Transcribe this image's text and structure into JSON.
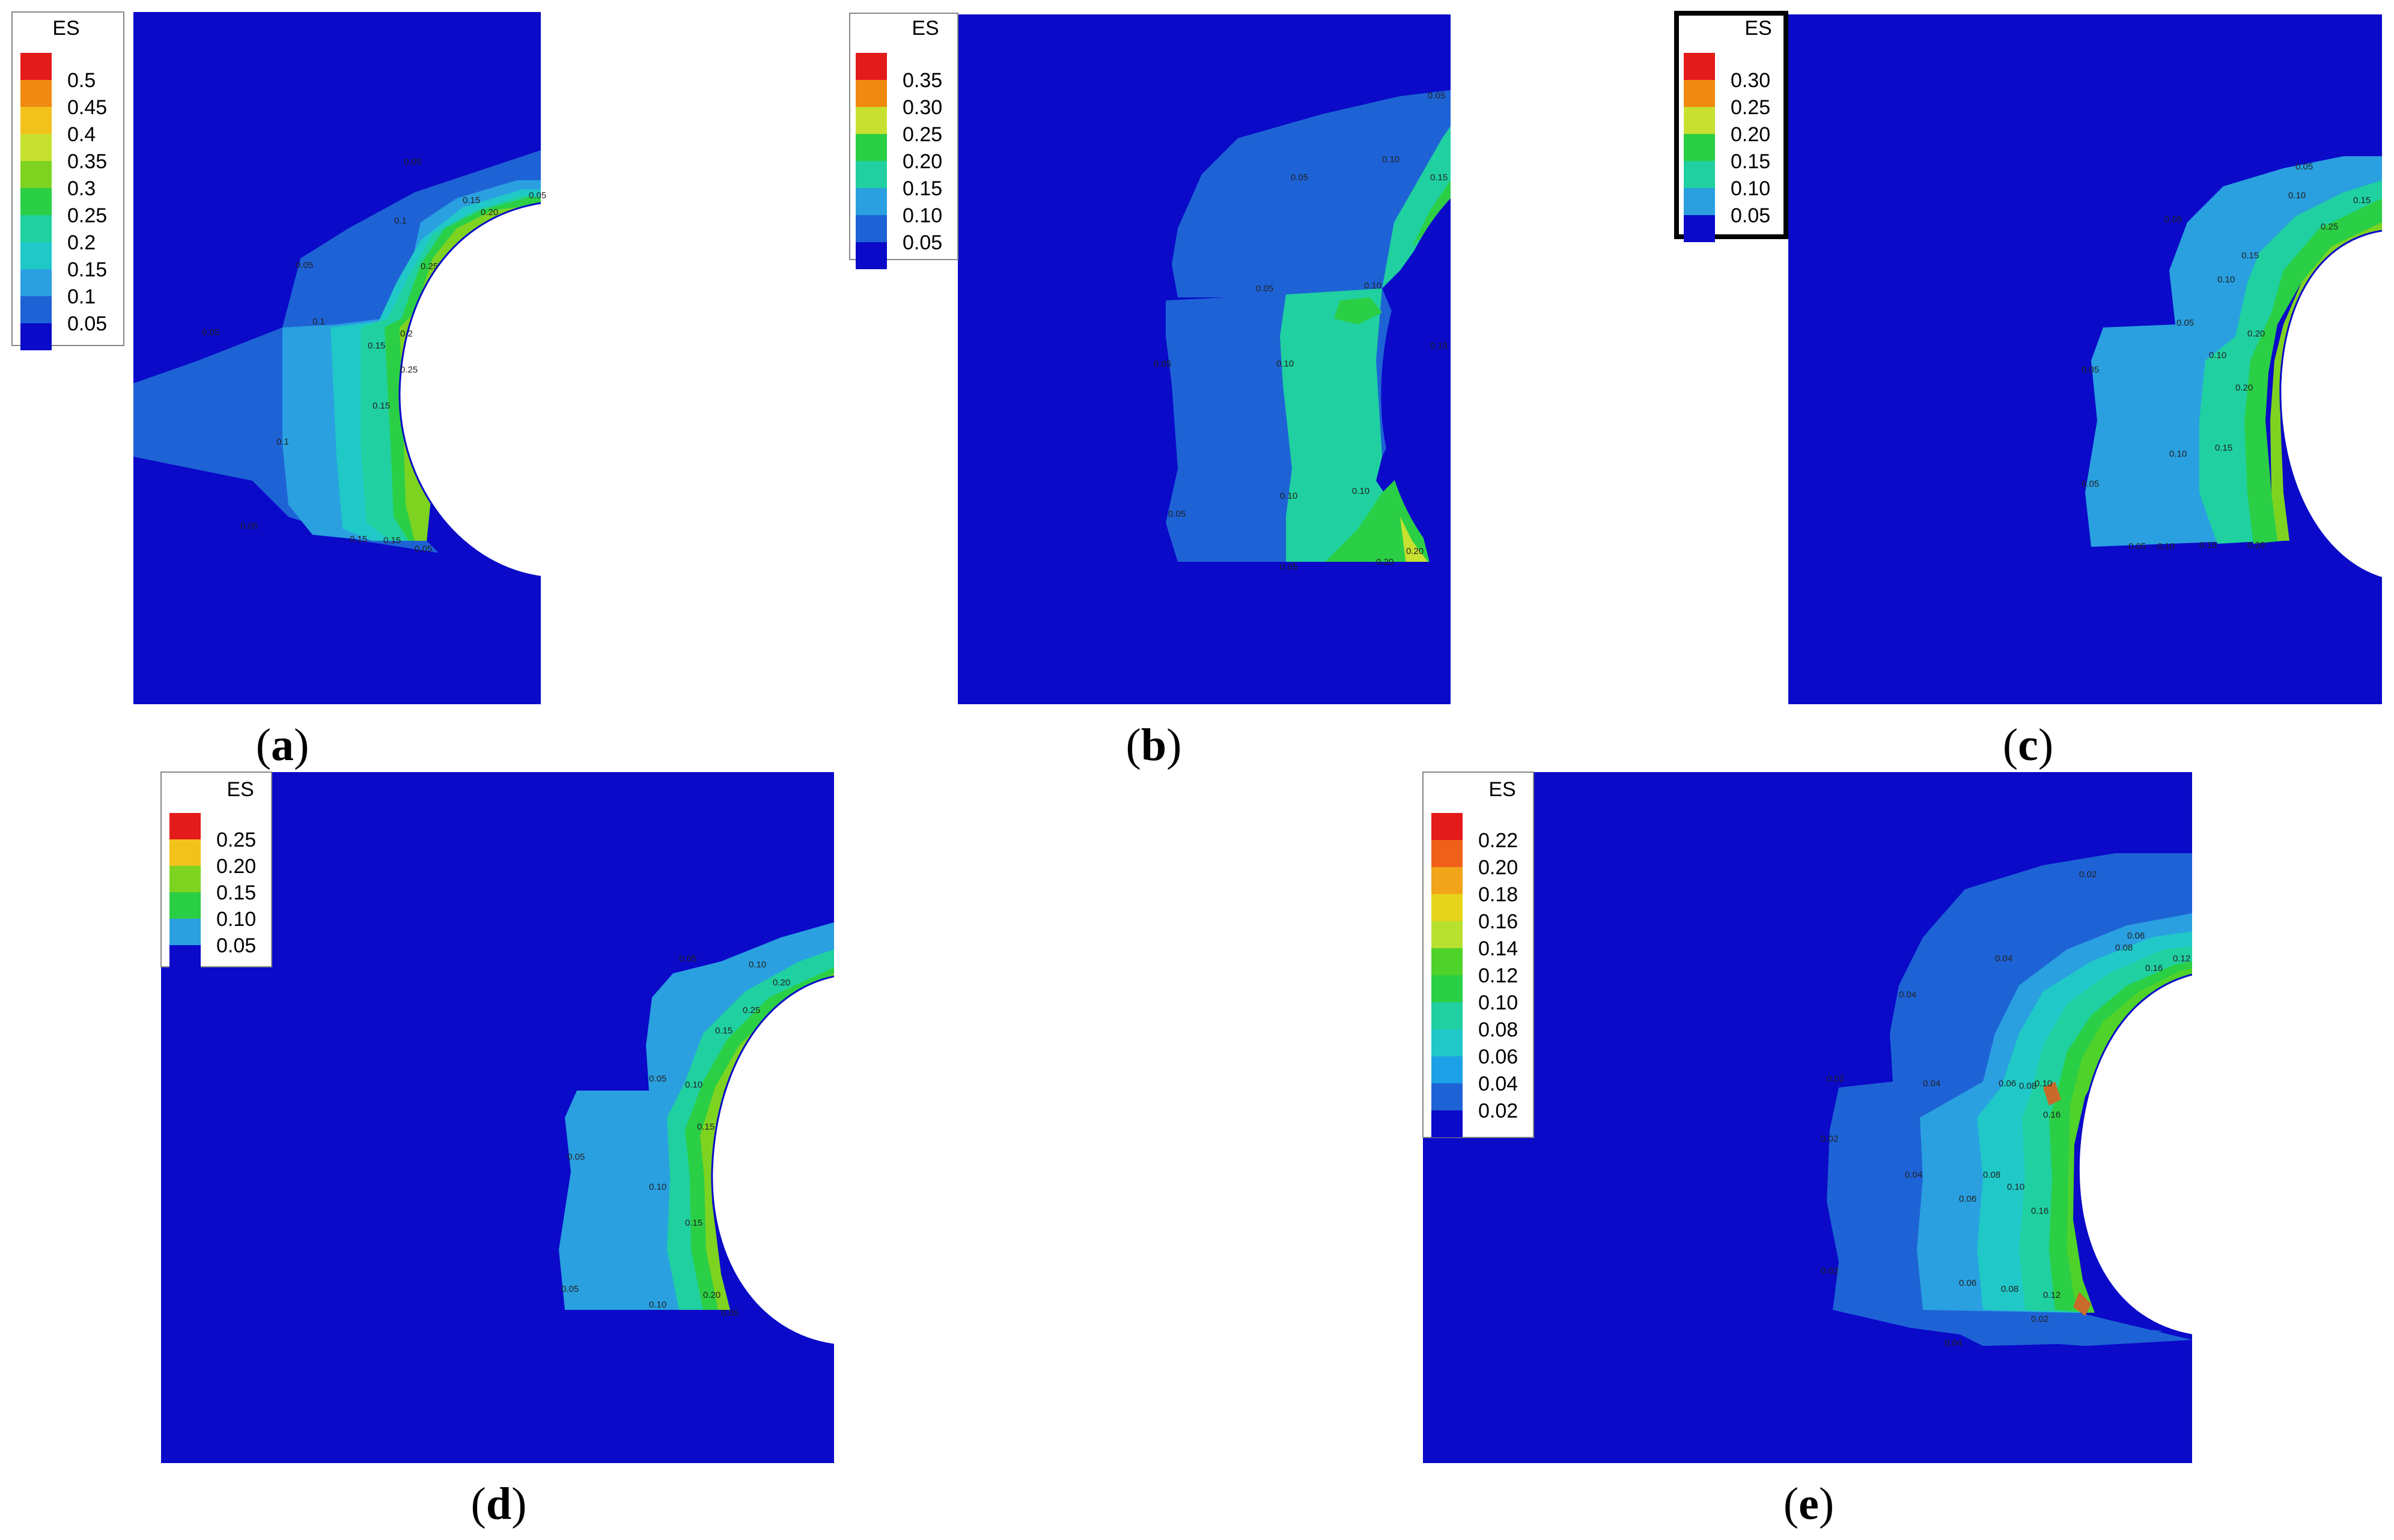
{
  "figure": {
    "panels": [
      {
        "id": "a",
        "caption_letter": "a",
        "legend_title": "ES",
        "legend_values": [
          "0.5",
          "0.45",
          "0.4",
          "0.35",
          "0.3",
          "0.25",
          "0.2",
          "0.15",
          "0.1",
          "0.05"
        ],
        "legend_colors": [
          "#e41b1b",
          "#f08a10",
          "#f2c21a",
          "#c8e030",
          "#7ed321",
          "#2bcf45",
          "#20d0a0",
          "#20c8c8",
          "#2aa0e0",
          "#1e63d6",
          "#0a0ac8"
        ],
        "contour_labels": [
          "0.05",
          "0.05",
          "0.1",
          "0.15",
          "0.20",
          "0.25",
          "0.05",
          "0.1",
          "0.15",
          "0.2",
          "0.05",
          "0.1",
          "0.15",
          "0.25",
          "0.05",
          "0.15",
          "0.15",
          "0.05"
        ]
      },
      {
        "id": "b",
        "caption_letter": "b",
        "legend_title": "ES",
        "legend_values": [
          "0.35",
          "0.30",
          "0.25",
          "0.20",
          "0.15",
          "0.10",
          "0.05"
        ],
        "legend_colors": [
          "#e41b1b",
          "#f08a10",
          "#c8e030",
          "#2bcf45",
          "#20d0a0",
          "#2aa0e0",
          "#1e63d6",
          "#0a0ac8"
        ],
        "contour_labels": [
          "0.05",
          "0.05",
          "0.10",
          "0.15",
          "0.05",
          "0.10",
          "0.05",
          "0.10",
          "0.15",
          "0.05",
          "0.10",
          "0.05",
          "0.10",
          "0.20",
          "0.20"
        ]
      },
      {
        "id": "c",
        "caption_letter": "c",
        "legend_title": "ES",
        "legend_values": [
          "0.30",
          "0.25",
          "0.20",
          "0.15",
          "0.10",
          "0.05"
        ],
        "legend_colors": [
          "#e41b1b",
          "#f08a10",
          "#c8e030",
          "#2bcf45",
          "#20d0a0",
          "#2aa0e0",
          "#0a0ac8"
        ],
        "contour_labels": [
          "0.05",
          "0.10",
          "0.15",
          "0.05",
          "0.10",
          "0.15",
          "0.25",
          "0.05",
          "0.10",
          "0.20",
          "0.05",
          "0.10",
          "0.15",
          "0.20",
          "0.05",
          "0.05",
          "0.10",
          "0.15",
          "0.20"
        ]
      },
      {
        "id": "d",
        "caption_letter": "d",
        "legend_title": "ES",
        "legend_values": [
          "0.25",
          "0.20",
          "0.15",
          "0.10",
          "0.05"
        ],
        "legend_colors": [
          "#e41b1b",
          "#f2c21a",
          "#7ed321",
          "#2bcf45",
          "#2aa0e0",
          "#0a0ac8"
        ],
        "contour_labels": [
          "0.05",
          "0.10",
          "0.20",
          "0.15",
          "0.25",
          "0.05",
          "0.10",
          "0.15",
          "0.05",
          "0.10",
          "0.15",
          "0.05",
          "0.10",
          "0.20",
          "0.05"
        ]
      },
      {
        "id": "e",
        "caption_letter": "e",
        "legend_title": "ES",
        "legend_values": [
          "0.22",
          "0.20",
          "0.18",
          "0.16",
          "0.14",
          "0.12",
          "0.10",
          "0.08",
          "0.06",
          "0.04",
          "0.02"
        ],
        "legend_colors": [
          "#e41b1b",
          "#f0601a",
          "#f2a41a",
          "#e6d41a",
          "#b8e030",
          "#4fd22a",
          "#2bcf45",
          "#20d0a0",
          "#20c8c8",
          "#1ea0e6",
          "#1e63d6",
          "#0a0ac8"
        ],
        "contour_labels": [
          "0.02",
          "0.04",
          "0.04",
          "0.06",
          "0.08",
          "0.16",
          "0.12",
          "0.02",
          "0.04",
          "0.06",
          "0.08",
          "0.10",
          "0.16",
          "0.02",
          "0.04",
          "0.06",
          "0.08",
          "0.10",
          "0.16",
          "0.02",
          "0.06",
          "0.08",
          "0.12",
          "0.02",
          "0.04"
        ]
      }
    ]
  }
}
